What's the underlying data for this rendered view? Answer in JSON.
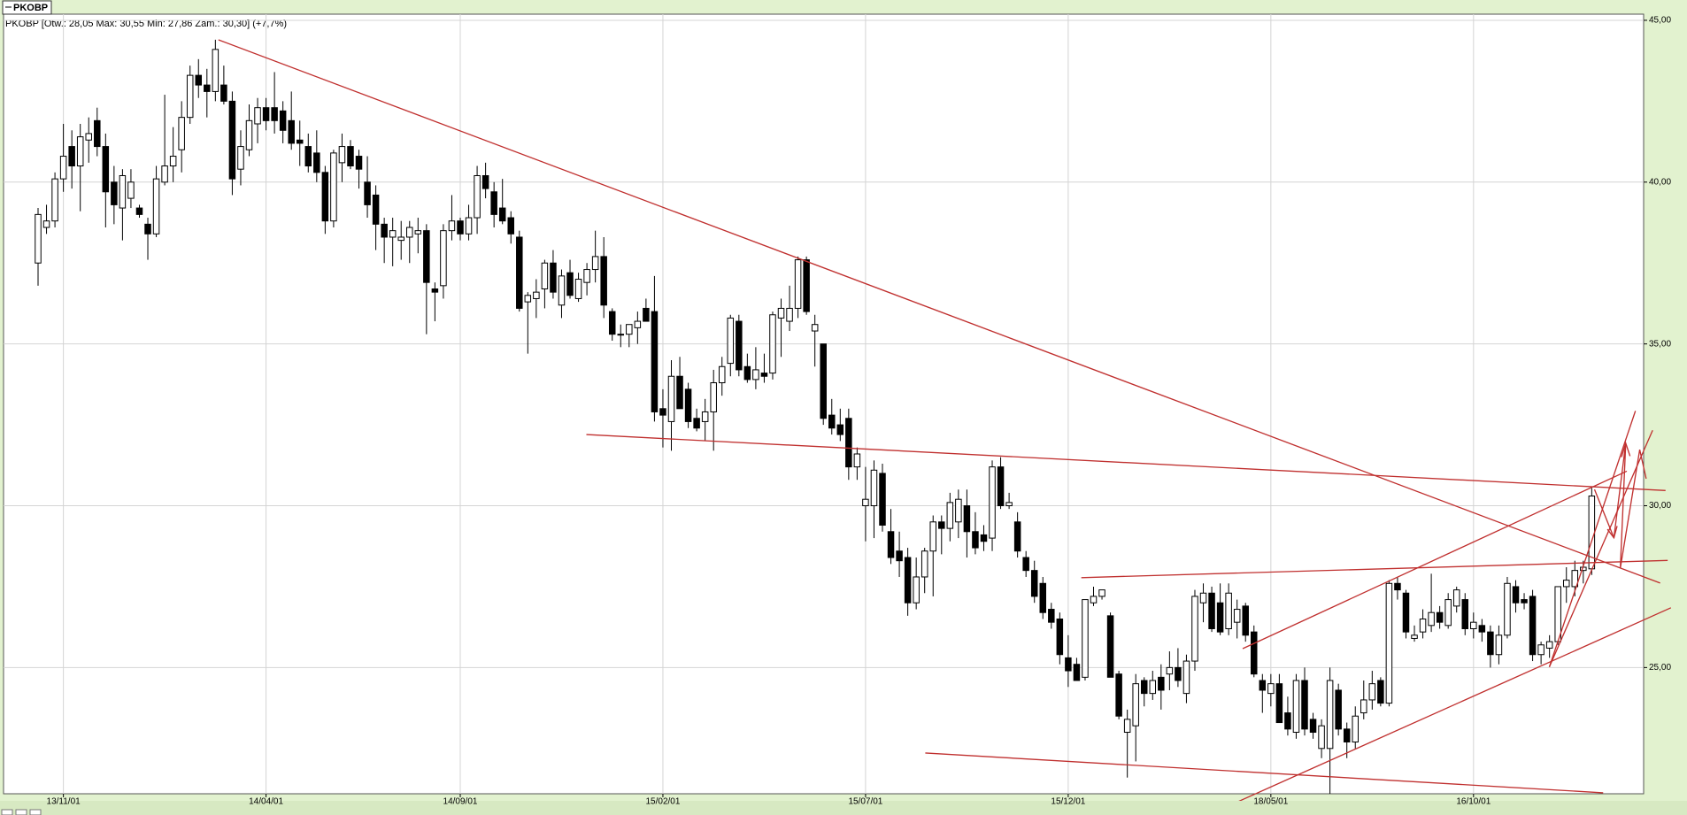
{
  "header": {
    "tab": "PKOBP"
  },
  "chart_data": {
    "type": "candlestick",
    "title": "PKOBP [Otw.: 28,05  Max: 30,55  Min: 27,86  Zam.: 30,30] (+7,7%)",
    "up_color": "#ffffff",
    "down_color": "#000000",
    "grid": true,
    "ylim": [
      21.1,
      45.19
    ],
    "yticks": [
      {
        "value": 25,
        "label": "25,00"
      },
      {
        "value": 30,
        "label": "30,00"
      },
      {
        "value": 35,
        "label": "35,00"
      },
      {
        "value": 40,
        "label": "40,00"
      },
      {
        "value": 45,
        "label": "45,00"
      }
    ],
    "categories": [
      null,
      null,
      null,
      "13/11/01",
      null,
      null,
      null,
      null,
      null,
      null,
      null,
      null,
      null,
      null,
      null,
      null,
      null,
      null,
      null,
      null,
      null,
      null,
      null,
      null,
      null,
      null,
      null,
      "14/04/01",
      null,
      null,
      null,
      null,
      null,
      null,
      null,
      null,
      null,
      null,
      null,
      null,
      null,
      null,
      null,
      null,
      null,
      null,
      null,
      null,
      null,
      null,
      "14/09/01",
      null,
      null,
      null,
      null,
      null,
      null,
      null,
      null,
      null,
      null,
      null,
      null,
      null,
      null,
      null,
      null,
      null,
      null,
      null,
      null,
      null,
      null,
      null,
      "15/02/01",
      null,
      null,
      null,
      null,
      null,
      null,
      null,
      null,
      null,
      null,
      null,
      null,
      null,
      null,
      null,
      null,
      null,
      null,
      null,
      null,
      null,
      null,
      null,
      "15/07/01",
      null,
      null,
      null,
      null,
      null,
      null,
      null,
      null,
      null,
      null,
      null,
      null,
      null,
      null,
      null,
      null,
      null,
      null,
      null,
      null,
      null,
      null,
      null,
      "15/12/01",
      null,
      null,
      null,
      null,
      null,
      null,
      null,
      null,
      null,
      null,
      null,
      null,
      null,
      null,
      null,
      null,
      null,
      null,
      null,
      null,
      null,
      null,
      null,
      "18/05/01",
      null,
      null,
      null,
      null,
      null,
      null,
      null,
      null,
      null,
      null,
      null,
      null,
      null,
      null,
      null,
      null,
      null,
      null,
      null,
      null,
      null,
      null,
      null,
      "16/10/01",
      null,
      null,
      null,
      null,
      null,
      null,
      null,
      null,
      null,
      null,
      null,
      null,
      null,
      null
    ],
    "candles": [
      [
        37.5,
        39.2,
        36.8,
        39.0
      ],
      [
        38.6,
        39.3,
        38.4,
        38.8
      ],
      [
        38.8,
        40.3,
        38.6,
        40.1
      ],
      [
        40.1,
        41.8,
        39.7,
        40.8
      ],
      [
        41.1,
        41.6,
        39.8,
        40.5
      ],
      [
        40.5,
        41.8,
        39.1,
        41.4
      ],
      [
        41.3,
        42.0,
        40.6,
        41.5
      ],
      [
        41.9,
        42.3,
        40.8,
        41.1
      ],
      [
        41.1,
        41.5,
        38.6,
        39.7
      ],
      [
        40.0,
        40.5,
        38.7,
        39.3
      ],
      [
        39.2,
        40.4,
        38.2,
        40.2
      ],
      [
        39.5,
        40.4,
        39.2,
        40.0
      ],
      [
        39.2,
        39.3,
        38.9,
        39.0
      ],
      [
        38.7,
        38.9,
        37.6,
        38.4
      ],
      [
        38.4,
        40.5,
        38.3,
        40.1
      ],
      [
        40.0,
        42.7,
        39.9,
        40.5
      ],
      [
        40.5,
        41.7,
        40.0,
        40.8
      ],
      [
        41.0,
        42.5,
        40.3,
        42.0
      ],
      [
        42.0,
        43.6,
        41.8,
        43.3
      ],
      [
        43.3,
        43.8,
        42.6,
        43.0
      ],
      [
        43.0,
        43.5,
        42.0,
        42.8
      ],
      [
        42.8,
        44.4,
        42.5,
        44.1
      ],
      [
        43.0,
        43.6,
        42.4,
        42.5
      ],
      [
        42.5,
        42.8,
        39.6,
        40.1
      ],
      [
        40.4,
        41.6,
        39.9,
        41.1
      ],
      [
        41.0,
        42.4,
        40.8,
        41.9
      ],
      [
        41.8,
        42.6,
        41.2,
        42.3
      ],
      [
        42.3,
        42.6,
        41.6,
        41.9
      ],
      [
        42.3,
        43.4,
        41.5,
        41.9
      ],
      [
        42.2,
        42.5,
        41.2,
        41.6
      ],
      [
        41.9,
        42.8,
        41.0,
        41.2
      ],
      [
        41.3,
        41.9,
        40.5,
        41.2
      ],
      [
        41.1,
        41.5,
        40.3,
        40.5
      ],
      [
        40.9,
        41.6,
        40.0,
        40.3
      ],
      [
        40.3,
        40.5,
        38.4,
        38.8
      ],
      [
        38.8,
        41.0,
        38.6,
        40.9
      ],
      [
        40.6,
        41.5,
        40.0,
        41.1
      ],
      [
        41.1,
        41.3,
        40.4,
        40.5
      ],
      [
        40.8,
        41.0,
        39.8,
        40.4
      ],
      [
        40.0,
        40.8,
        38.9,
        39.3
      ],
      [
        39.6,
        39.9,
        37.9,
        38.7
      ],
      [
        38.7,
        38.9,
        37.5,
        38.3
      ],
      [
        38.3,
        38.9,
        37.4,
        38.5
      ],
      [
        38.2,
        38.8,
        37.6,
        38.3
      ],
      [
        38.3,
        38.8,
        37.5,
        38.6
      ],
      [
        38.4,
        38.9,
        37.8,
        38.5
      ],
      [
        38.5,
        38.7,
        35.3,
        36.9
      ],
      [
        36.7,
        36.9,
        35.7,
        36.6
      ],
      [
        36.8,
        38.7,
        36.4,
        38.5
      ],
      [
        38.5,
        39.6,
        38.2,
        38.8
      ],
      [
        38.8,
        38.9,
        38.2,
        38.4
      ],
      [
        38.4,
        39.3,
        38.2,
        38.9
      ],
      [
        38.9,
        40.5,
        38.4,
        40.2
      ],
      [
        40.2,
        40.6,
        39.5,
        39.8
      ],
      [
        39.7,
        40.0,
        38.6,
        39.0
      ],
      [
        39.2,
        40.1,
        38.7,
        38.8
      ],
      [
        38.9,
        39.1,
        38.1,
        38.4
      ],
      [
        38.3,
        38.5,
        36.0,
        36.1
      ],
      [
        36.3,
        36.6,
        34.7,
        36.5
      ],
      [
        36.4,
        37.0,
        35.8,
        36.6
      ],
      [
        36.7,
        37.6,
        36.1,
        37.5
      ],
      [
        37.5,
        37.9,
        36.4,
        36.6
      ],
      [
        36.2,
        37.3,
        35.8,
        37.1
      ],
      [
        37.2,
        37.6,
        36.4,
        36.5
      ],
      [
        36.4,
        37.2,
        36.3,
        37.0
      ],
      [
        36.9,
        37.5,
        36.5,
        37.3
      ],
      [
        37.3,
        38.5,
        36.9,
        37.7
      ],
      [
        37.7,
        38.3,
        35.8,
        36.2
      ],
      [
        36.0,
        36.1,
        35.1,
        35.3
      ],
      [
        35.3,
        35.6,
        34.9,
        35.3
      ],
      [
        35.3,
        35.6,
        34.9,
        35.6
      ],
      [
        35.5,
        36.0,
        35.0,
        35.7
      ],
      [
        36.1,
        36.4,
        35.7,
        35.7
      ],
      [
        36.0,
        37.1,
        32.6,
        32.9
      ],
      [
        33.0,
        33.6,
        31.8,
        32.8
      ],
      [
        32.6,
        34.5,
        31.7,
        34.0
      ],
      [
        34.0,
        34.6,
        33.0,
        33.0
      ],
      [
        33.6,
        33.8,
        32.4,
        32.6
      ],
      [
        32.7,
        33.0,
        32.3,
        32.4
      ],
      [
        32.6,
        33.3,
        32.0,
        32.9
      ],
      [
        32.9,
        34.2,
        31.7,
        33.8
      ],
      [
        33.8,
        34.6,
        33.4,
        34.3
      ],
      [
        34.4,
        35.9,
        34.0,
        35.8
      ],
      [
        35.7,
        35.9,
        34.0,
        34.2
      ],
      [
        34.3,
        34.7,
        33.8,
        33.9
      ],
      [
        33.9,
        34.9,
        33.6,
        34.2
      ],
      [
        34.1,
        34.7,
        33.8,
        34.0
      ],
      [
        34.1,
        36.0,
        33.9,
        35.9
      ],
      [
        35.8,
        36.4,
        34.6,
        36.1
      ],
      [
        35.7,
        36.8,
        35.4,
        36.1
      ],
      [
        36.1,
        37.7,
        35.8,
        37.6
      ],
      [
        37.6,
        37.7,
        35.9,
        36.0
      ],
      [
        35.4,
        35.9,
        34.3,
        35.6
      ],
      [
        35.0,
        35.0,
        32.5,
        32.7
      ],
      [
        32.8,
        33.3,
        32.2,
        32.4
      ],
      [
        32.5,
        33.0,
        32.0,
        32.2
      ],
      [
        32.7,
        33.0,
        30.8,
        31.2
      ],
      [
        31.2,
        31.8,
        30.8,
        31.6
      ],
      [
        30.0,
        31.2,
        28.9,
        30.2
      ],
      [
        30.0,
        31.4,
        29.0,
        31.1
      ],
      [
        31.0,
        31.3,
        29.2,
        29.4
      ],
      [
        29.2,
        29.9,
        28.2,
        28.4
      ],
      [
        28.6,
        29.2,
        27.8,
        28.3
      ],
      [
        28.4,
        28.7,
        26.6,
        27.0
      ],
      [
        27.0,
        28.4,
        26.8,
        27.8
      ],
      [
        27.8,
        28.7,
        27.3,
        28.6
      ],
      [
        28.6,
        29.7,
        27.2,
        29.5
      ],
      [
        29.5,
        29.7,
        28.5,
        29.3
      ],
      [
        29.3,
        30.4,
        28.9,
        30.1
      ],
      [
        29.5,
        30.5,
        29.0,
        30.2
      ],
      [
        30.0,
        30.5,
        28.4,
        29.2
      ],
      [
        29.2,
        29.8,
        28.5,
        28.7
      ],
      [
        29.1,
        29.4,
        28.6,
        28.9
      ],
      [
        29.0,
        31.4,
        28.6,
        31.2
      ],
      [
        31.2,
        31.5,
        29.9,
        30.0
      ],
      [
        30.0,
        30.4,
        29.9,
        30.1
      ],
      [
        29.5,
        29.8,
        28.4,
        28.6
      ],
      [
        28.4,
        28.6,
        27.8,
        28.0
      ],
      [
        28.0,
        28.3,
        27.0,
        27.2
      ],
      [
        27.6,
        27.8,
        26.5,
        26.7
      ],
      [
        26.8,
        27.0,
        26.2,
        26.4
      ],
      [
        26.5,
        26.7,
        25.1,
        25.4
      ],
      [
        25.3,
        26.0,
        24.4,
        24.9
      ],
      [
        25.1,
        25.3,
        24.6,
        24.6
      ],
      [
        24.7,
        27.1,
        24.6,
        27.1
      ],
      [
        27.0,
        27.5,
        26.9,
        27.2
      ],
      [
        27.2,
        27.4,
        27.1,
        27.4
      ],
      [
        26.6,
        26.7,
        24.7,
        24.7
      ],
      [
        24.8,
        24.9,
        23.4,
        23.5
      ],
      [
        23.0,
        23.7,
        21.6,
        23.4
      ],
      [
        23.2,
        24.8,
        22.1,
        24.5
      ],
      [
        24.6,
        24.7,
        23.8,
        24.2
      ],
      [
        24.2,
        24.9,
        24.0,
        24.6
      ],
      [
        24.7,
        25.1,
        23.7,
        24.3
      ],
      [
        24.8,
        25.5,
        24.3,
        25.0
      ],
      [
        25.0,
        25.6,
        24.4,
        24.6
      ],
      [
        24.2,
        25.4,
        23.9,
        25.2
      ],
      [
        25.2,
        27.4,
        24.9,
        27.2
      ],
      [
        27.0,
        27.6,
        26.4,
        27.3
      ],
      [
        27.3,
        27.5,
        26.1,
        26.2
      ],
      [
        27.0,
        27.6,
        26.0,
        26.1
      ],
      [
        26.2,
        27.6,
        26.0,
        27.3
      ],
      [
        26.4,
        27.1,
        25.9,
        26.8
      ],
      [
        26.9,
        27.0,
        25.8,
        26.0
      ],
      [
        26.1,
        26.3,
        24.7,
        24.8
      ],
      [
        24.6,
        24.8,
        23.6,
        24.3
      ],
      [
        24.2,
        24.8,
        23.8,
        24.5
      ],
      [
        24.5,
        24.8,
        23.3,
        23.3
      ],
      [
        23.6,
        24.1,
        22.9,
        23.1
      ],
      [
        23.0,
        24.8,
        22.8,
        24.6
      ],
      [
        24.6,
        25.0,
        22.9,
        23.1
      ],
      [
        23.4,
        23.6,
        22.8,
        23.0
      ],
      [
        22.5,
        23.4,
        22.2,
        23.2
      ],
      [
        22.5,
        25.0,
        21.1,
        24.6
      ],
      [
        24.3,
        24.5,
        22.9,
        23.1
      ],
      [
        23.1,
        23.3,
        22.2,
        22.7
      ],
      [
        22.7,
        23.8,
        22.5,
        23.5
      ],
      [
        23.6,
        24.6,
        23.4,
        24.0
      ],
      [
        24.0,
        24.9,
        23.7,
        24.5
      ],
      [
        24.6,
        24.7,
        23.8,
        23.9
      ],
      [
        23.9,
        27.7,
        23.8,
        27.6
      ],
      [
        27.6,
        27.8,
        27.1,
        27.4
      ],
      [
        27.3,
        27.4,
        25.9,
        26.1
      ],
      [
        25.9,
        26.3,
        25.8,
        26.0
      ],
      [
        26.1,
        26.8,
        25.9,
        26.5
      ],
      [
        26.3,
        27.9,
        26.1,
        26.7
      ],
      [
        26.7,
        26.9,
        26.2,
        26.4
      ],
      [
        26.3,
        27.3,
        26.2,
        27.1
      ],
      [
        26.9,
        27.5,
        26.7,
        27.4
      ],
      [
        27.1,
        27.3,
        26.0,
        26.2
      ],
      [
        26.2,
        26.7,
        25.9,
        26.4
      ],
      [
        26.3,
        26.5,
        25.8,
        26.1
      ],
      [
        26.1,
        26.3,
        25.0,
        25.4
      ],
      [
        25.4,
        26.3,
        25.1,
        26.0
      ],
      [
        26.0,
        27.8,
        25.9,
        27.6
      ],
      [
        27.5,
        27.7,
        26.7,
        27.0
      ],
      [
        27.1,
        27.3,
        26.8,
        27.0
      ],
      [
        27.2,
        27.4,
        25.2,
        25.4
      ],
      [
        25.4,
        25.8,
        25.1,
        25.7
      ],
      [
        25.6,
        26.0,
        25.3,
        25.8
      ],
      [
        25.8,
        27.5,
        25.7,
        27.5
      ],
      [
        27.5,
        28.1,
        27.0,
        27.7
      ],
      [
        27.5,
        28.3,
        27.2,
        28.0
      ],
      [
        28.0,
        28.3,
        27.6,
        28.1
      ],
      [
        28.05,
        30.55,
        27.86,
        30.3
      ]
    ]
  }
}
